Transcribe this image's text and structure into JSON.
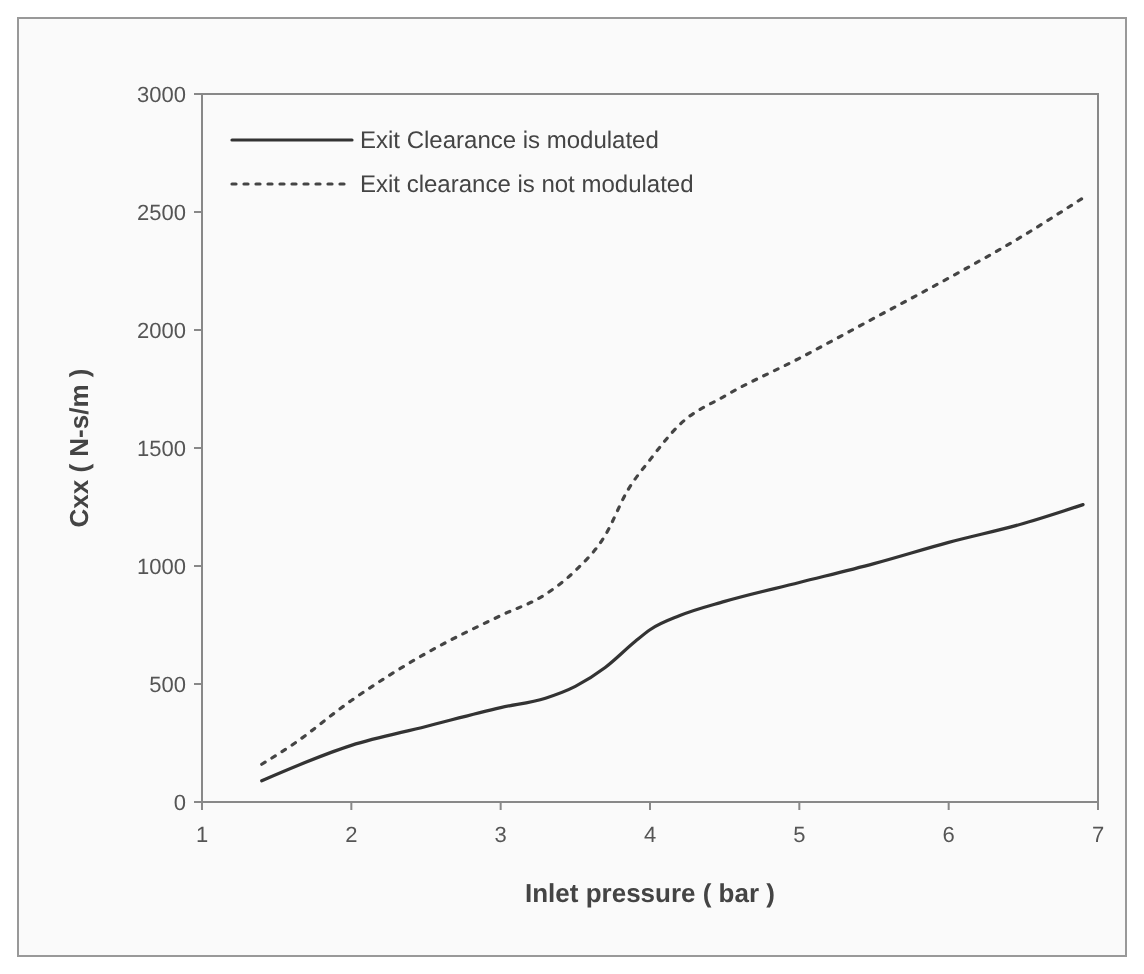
{
  "chart_data": {
    "type": "line",
    "xlabel": "Inlet pressure ( bar )",
    "ylabel": "Cxx ( N-s/m )",
    "xlim": [
      1,
      7
    ],
    "xticks": [
      1,
      2,
      3,
      4,
      5,
      6,
      7
    ],
    "ylim": [
      0,
      3000
    ],
    "yticks": [
      0,
      500,
      1000,
      1500,
      2000,
      2500,
      3000
    ],
    "grid": false,
    "legend": "top left",
    "series": [
      {
        "name": "Exit Clearance is modulated",
        "color": "#333333",
        "line_style": "solid",
        "x": [
          1.4,
          2,
          2.5,
          3,
          3.3,
          3.5,
          3.7,
          3.9,
          4,
          4.2,
          4.5,
          5,
          5.5,
          6,
          6.5,
          6.9
        ],
        "values": [
          90,
          240,
          320,
          400,
          440,
          490,
          570,
          680,
          730,
          790,
          850,
          930,
          1010,
          1100,
          1180,
          1260
        ]
      },
      {
        "name": "Exit clearance is not modulated",
        "color": "#444444",
        "line_style": "dotted",
        "x": [
          1.4,
          1.6,
          2,
          2.5,
          3,
          3.3,
          3.5,
          3.7,
          3.85,
          4,
          4.2,
          4.5,
          5,
          5.5,
          6,
          6.5,
          6.9
        ],
        "values": [
          160,
          240,
          430,
          630,
          790,
          880,
          980,
          1130,
          1320,
          1450,
          1600,
          1720,
          1880,
          2050,
          2220,
          2400,
          2560
        ]
      }
    ]
  }
}
